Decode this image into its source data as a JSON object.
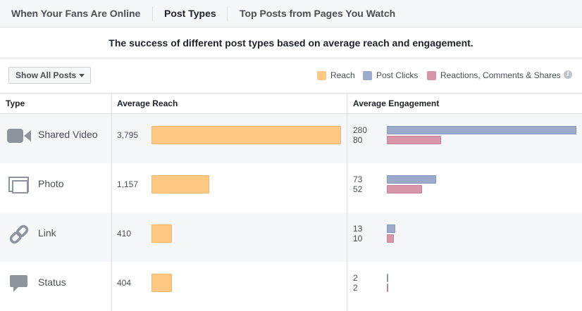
{
  "tabs": [
    {
      "label": "When Your Fans Are Online",
      "active": false
    },
    {
      "label": "Post Types",
      "active": true
    },
    {
      "label": "Top Posts from Pages You Watch",
      "active": false
    }
  ],
  "subtitle": "The success of different post types based on average reach and engagement.",
  "filter": {
    "label": "Show All Posts"
  },
  "legend": {
    "reach": {
      "label": "Reach",
      "color": "#ffc983"
    },
    "clicks": {
      "label": "Post Clicks",
      "color": "#9cabcc"
    },
    "reactions": {
      "label": "Reactions, Comments & Shares",
      "color": "#d896ab"
    },
    "info": "i"
  },
  "table": {
    "headers": {
      "type": "Type",
      "reach": "Average Reach",
      "engagement": "Average Engagement"
    },
    "rows": [
      {
        "icon": "video-camera-icon",
        "type": "Shared Video",
        "reach": "3,795",
        "reach_value": 3795,
        "clicks": "280",
        "clicks_value": 280,
        "reactions": "80",
        "reactions_value": 80
      },
      {
        "icon": "photo-icon",
        "type": "Photo",
        "reach": "1,157",
        "reach_value": 1157,
        "clicks": "73",
        "clicks_value": 73,
        "reactions": "52",
        "reactions_value": 52
      },
      {
        "icon": "link-icon",
        "type": "Link",
        "reach": "410",
        "reach_value": 410,
        "clicks": "13",
        "clicks_value": 13,
        "reactions": "10",
        "reactions_value": 10
      },
      {
        "icon": "status-speech-bubble-icon",
        "type": "Status",
        "reach": "404",
        "reach_value": 404,
        "clicks": "2",
        "clicks_value": 2,
        "reactions": "2",
        "reactions_value": 2
      }
    ]
  }
}
